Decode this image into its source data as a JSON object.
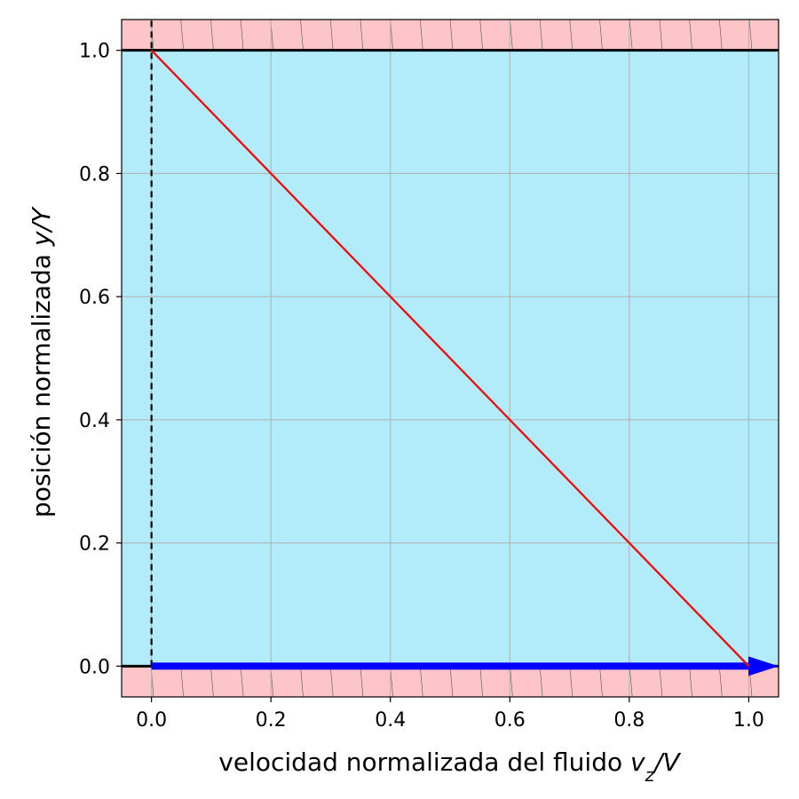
{
  "chart_data": {
    "type": "line",
    "xlabel_prefix": "velocidad normalizada del fluido ",
    "xlabel_var": "v",
    "xlabel_sub": "z",
    "xlabel_suffix": "/V",
    "ylabel_prefix": "posición normalizada  ",
    "ylabel_var": "y/Y",
    "xlim": [
      -0.05,
      1.05
    ],
    "ylim": [
      -0.05,
      1.05
    ],
    "xticks": [
      "0.0",
      "0.2",
      "0.4",
      "0.6",
      "0.8",
      "1.0"
    ],
    "yticks": [
      "0.0",
      "0.2",
      "0.4",
      "0.6",
      "0.8",
      "1.0"
    ],
    "grid": true,
    "series": [
      {
        "x": [
          0.0,
          1.0
        ],
        "y": [
          1.0,
          0.0
        ],
        "color": "#ff0000",
        "style": "solid"
      }
    ],
    "reference_line": {
      "x": 0.0,
      "y": [
        0.0,
        1.05
      ],
      "color": "#000000",
      "style": "dashed"
    },
    "walls": [
      {
        "y": 1.0,
        "region": [
          1.0,
          1.05
        ],
        "fill": "#fdc5c8",
        "line_color": "#000000"
      },
      {
        "y": 0.0,
        "region": [
          -0.05,
          0.0
        ],
        "fill": "#fdc5c8",
        "line_color": "#000000"
      }
    ],
    "wall_velocity_arrow": {
      "x_start": 0.0,
      "x_end": 1.05,
      "y": 0.0,
      "color": "#0000ff"
    },
    "fluid_fill": "#b2ebf9"
  }
}
